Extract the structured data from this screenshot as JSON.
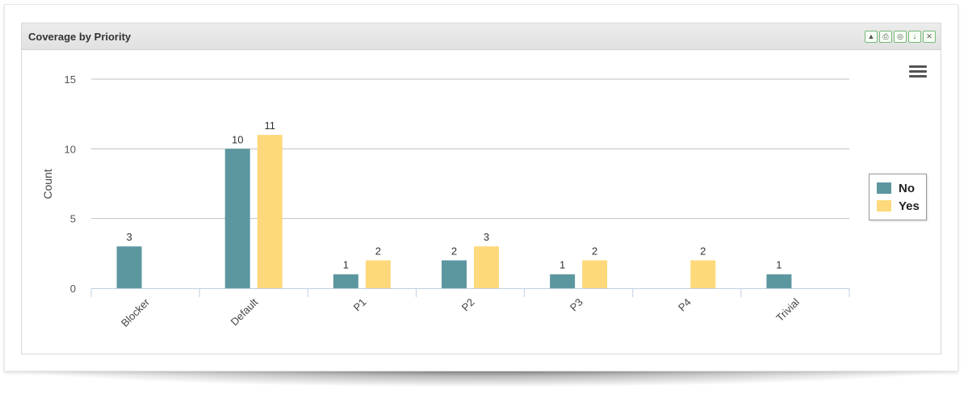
{
  "gadget": {
    "title": "Coverage by Priority",
    "controls": [
      {
        "name": "collapse-icon",
        "glyph": "▲"
      },
      {
        "name": "print-icon",
        "glyph": "⎙"
      },
      {
        "name": "binoculars-icon",
        "glyph": "◎"
      },
      {
        "name": "pin-icon",
        "glyph": "↓"
      },
      {
        "name": "close-icon",
        "glyph": "✕"
      }
    ],
    "menu_icon": "hamburger-icon"
  },
  "chart_data": {
    "type": "bar",
    "ylabel": "Count",
    "ylim": [
      0,
      15
    ],
    "yticks": [
      0,
      5,
      10,
      15
    ],
    "categories": [
      "Blocker",
      "Default",
      "P1",
      "P2",
      "P3",
      "P4",
      "Trivial"
    ],
    "series": [
      {
        "name": "No",
        "color": "#5c97a0",
        "values": [
          3,
          10,
          1,
          2,
          1,
          null,
          1
        ]
      },
      {
        "name": "Yes",
        "color": "#fdd97b",
        "values": [
          null,
          11,
          2,
          3,
          2,
          2,
          null
        ]
      }
    ],
    "legend_position": "right",
    "grid": true
  }
}
